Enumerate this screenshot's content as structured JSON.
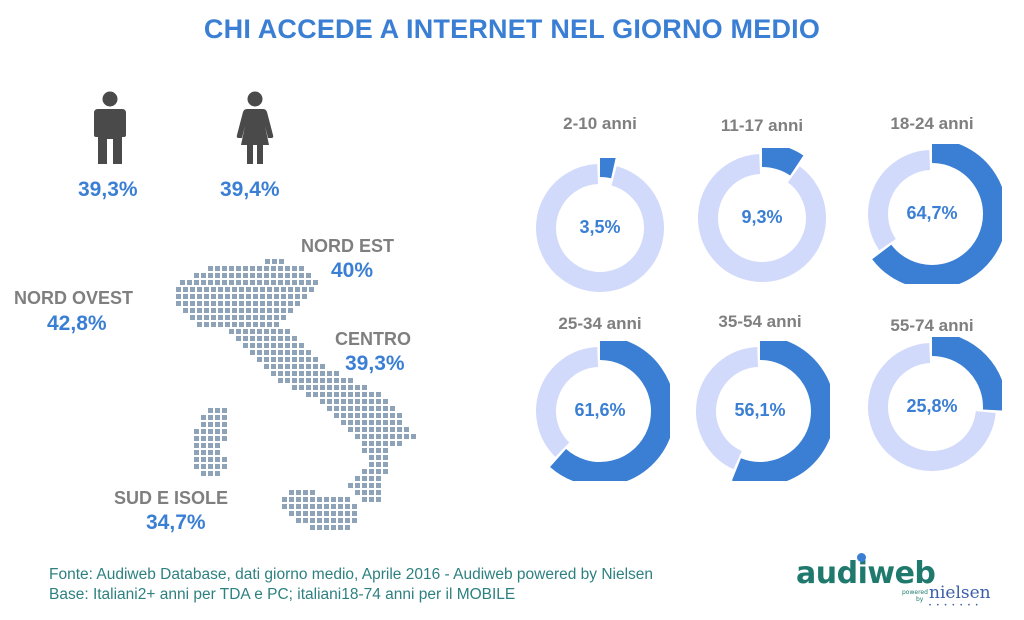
{
  "title": "CHI ACCEDE A INTERNET NEL GIORNO MEDIO",
  "gender": {
    "male": {
      "icon": "man-icon",
      "value": "39,3%"
    },
    "female": {
      "icon": "woman-icon",
      "value": "39,4%"
    }
  },
  "regions": {
    "nord_ovest": {
      "name": "NORD OVEST",
      "value": "42,8%"
    },
    "nord_est": {
      "name": "NORD EST",
      "value": "40%"
    },
    "centro": {
      "name": "CENTRO",
      "value": "39,3%"
    },
    "sud_isole": {
      "name": "SUD E ISOLE",
      "value": "34,7%"
    }
  },
  "colors": {
    "accent": "#3b7fd4",
    "track": "#d2dafc",
    "label": "#7f7f7f",
    "map": "#8fa3b8",
    "source": "#2e8080"
  },
  "chart_data": {
    "type": "pie",
    "categories": [
      "2-10 anni",
      "11-17 anni",
      "18-24 anni",
      "25-34 anni",
      "35-54 anni",
      "55-74 anni"
    ],
    "values": [
      3.5,
      9.3,
      64.7,
      61.6,
      56.1,
      25.8
    ],
    "labels": [
      "3,5%",
      "9,3%",
      "64,7%",
      "61,6%",
      "56,1%",
      "25,8%"
    ],
    "unit": "%"
  },
  "source": {
    "line1": "Fonte: Audiweb Database, dati giorno medio, Aprile 2016 - Audiweb powered by Nielsen",
    "line2": "Base: Italiani2+ anni per TDA e PC; italiani18-74 anni per il MOBILE"
  },
  "logo": {
    "audiweb": "audiweb",
    "powered": "powered",
    "by": "by",
    "nielsen": "nielsen"
  }
}
